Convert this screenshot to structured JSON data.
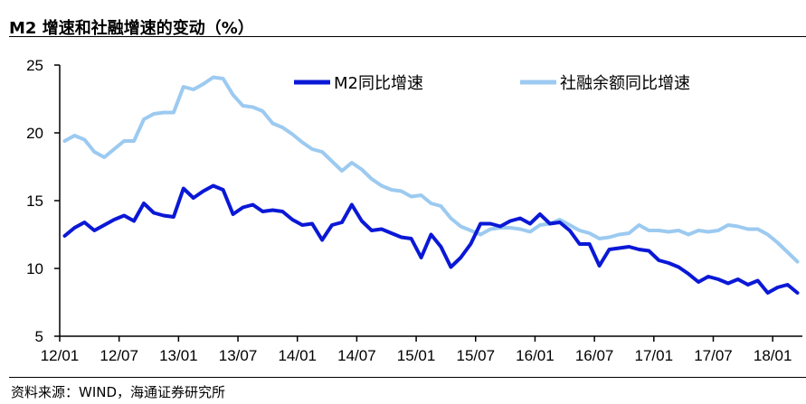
{
  "header": {
    "title": "M2 增速和社融增速的变动（%）"
  },
  "footer": {
    "source": "资料来源：WIND，海通证券研究所"
  },
  "colors": {
    "m2": "#0a18d6",
    "tsf": "#9ccaf0",
    "axis": "#000000"
  },
  "chart_data": {
    "type": "line",
    "title": "M2 增速和社融增速的变动（%）",
    "xlabel": "",
    "ylabel": "",
    "ylim": [
      5,
      25
    ],
    "yticks": [
      5,
      10,
      15,
      20,
      25
    ],
    "xticks": [
      "12/01",
      "12/07",
      "13/01",
      "13/07",
      "14/01",
      "14/07",
      "15/01",
      "15/07",
      "16/01",
      "16/07",
      "17/01",
      "17/07",
      "18/01"
    ],
    "x": [
      "12/01",
      "12/02",
      "12/03",
      "12/04",
      "12/05",
      "12/06",
      "12/07",
      "12/08",
      "12/09",
      "12/10",
      "12/11",
      "12/12",
      "13/01",
      "13/02",
      "13/03",
      "13/04",
      "13/05",
      "13/06",
      "13/07",
      "13/08",
      "13/09",
      "13/10",
      "13/11",
      "13/12",
      "14/01",
      "14/02",
      "14/03",
      "14/04",
      "14/05",
      "14/06",
      "14/07",
      "14/08",
      "14/09",
      "14/10",
      "14/11",
      "14/12",
      "15/01",
      "15/02",
      "15/03",
      "15/04",
      "15/05",
      "15/06",
      "15/07",
      "15/08",
      "15/09",
      "15/10",
      "15/11",
      "15/12",
      "16/01",
      "16/02",
      "16/03",
      "16/04",
      "16/05",
      "16/06",
      "16/07",
      "16/08",
      "16/09",
      "16/10",
      "16/11",
      "16/12",
      "17/01",
      "17/02",
      "17/03",
      "17/04",
      "17/05",
      "17/06",
      "17/07",
      "17/08",
      "17/09",
      "17/10",
      "17/11",
      "17/12",
      "18/01",
      "18/02",
      "18/03"
    ],
    "legend_position": "top",
    "series": [
      {
        "name": "M2同比增速",
        "values": [
          12.4,
          13.0,
          13.4,
          12.8,
          13.2,
          13.6,
          13.9,
          13.5,
          14.8,
          14.1,
          13.9,
          13.8,
          15.9,
          15.2,
          15.7,
          16.1,
          15.8,
          14.0,
          14.5,
          14.7,
          14.2,
          14.3,
          14.2,
          13.6,
          13.2,
          13.3,
          12.1,
          13.2,
          13.4,
          14.7,
          13.5,
          12.8,
          12.9,
          12.6,
          12.3,
          12.2,
          10.8,
          12.5,
          11.6,
          10.1,
          10.8,
          11.8,
          13.3,
          13.3,
          13.1,
          13.5,
          13.7,
          13.3,
          14.0,
          13.3,
          13.4,
          12.8,
          11.8,
          11.8,
          10.2,
          11.4,
          11.5,
          11.6,
          11.4,
          11.3,
          10.6,
          10.4,
          10.1,
          9.6,
          9.0,
          9.4,
          9.2,
          8.9,
          9.2,
          8.8,
          9.1,
          8.2,
          8.6,
          8.8,
          8.2
        ]
      },
      {
        "name": "社融余额同比增速",
        "values": [
          19.4,
          19.8,
          19.5,
          18.6,
          18.2,
          18.8,
          19.4,
          19.4,
          21.0,
          21.4,
          21.5,
          21.5,
          23.4,
          23.2,
          23.6,
          24.1,
          24.0,
          22.8,
          22.0,
          21.9,
          21.6,
          20.7,
          20.4,
          19.9,
          19.3,
          18.8,
          18.6,
          17.9,
          17.2,
          17.8,
          17.3,
          16.6,
          16.1,
          15.8,
          15.7,
          15.3,
          15.4,
          14.8,
          14.6,
          13.7,
          13.1,
          12.8,
          12.5,
          12.9,
          13.0,
          13.0,
          12.9,
          12.7,
          13.2,
          13.3,
          13.6,
          13.2,
          12.8,
          12.6,
          12.2,
          12.3,
          12.5,
          12.6,
          13.2,
          12.8,
          12.8,
          12.7,
          12.8,
          12.5,
          12.8,
          12.7,
          12.8,
          13.2,
          13.1,
          12.9,
          12.9,
          12.5,
          11.9,
          11.2,
          10.5
        ]
      }
    ]
  }
}
